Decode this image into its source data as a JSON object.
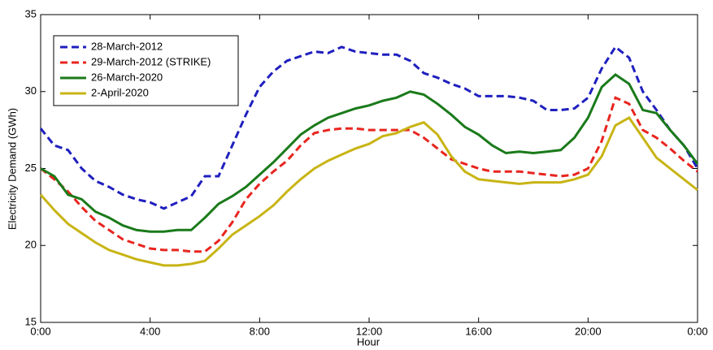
{
  "chart_data": {
    "type": "line",
    "x_label": "Hour",
    "y_label": "Electricity Demand (GWh)",
    "x": [
      0,
      0.5,
      1,
      1.5,
      2,
      2.5,
      3,
      3.5,
      4,
      4.5,
      5,
      5.5,
      6,
      6.5,
      7,
      7.5,
      8,
      8.5,
      9,
      9.5,
      10,
      10.5,
      11,
      11.5,
      12,
      12.5,
      13,
      13.5,
      14,
      14.5,
      15,
      15.5,
      16,
      16.5,
      17,
      17.5,
      18,
      18.5,
      19,
      19.5,
      20,
      20.5,
      21,
      21.5,
      22,
      22.5,
      23,
      23.5,
      24
    ],
    "series": [
      {
        "name": "28-March-2012",
        "color": "#1f1fbf",
        "dashed": true,
        "values": [
          27.6,
          26.5,
          26.2,
          25,
          24.2,
          23.8,
          23.3,
          23,
          22.8,
          22.4,
          22.8,
          23.2,
          24.5,
          24.5,
          26.5,
          28.5,
          30.3,
          31.3,
          32,
          32.3,
          32.6,
          32.5,
          32.9,
          32.6,
          32.5,
          32.4,
          32.4,
          32,
          31.2,
          30.9,
          30.5,
          30.2,
          29.7,
          29.7,
          29.7,
          29.6,
          29.4,
          28.8,
          28.8,
          28.9,
          29.6,
          31.5,
          32.9,
          32.2,
          30,
          28.8,
          27.5,
          26.5,
          25
        ]
      },
      {
        "name": "29-March-2012 (STRIKE)",
        "color": "#e8251f",
        "dashed": true,
        "values": [
          25,
          24.3,
          23.5,
          22.5,
          21.6,
          21,
          20.4,
          20.1,
          19.8,
          19.7,
          19.7,
          19.6,
          19.6,
          20.3,
          21.5,
          23,
          24,
          24.8,
          25.5,
          26.5,
          27.3,
          27.5,
          27.6,
          27.6,
          27.5,
          27.5,
          27.5,
          27.5,
          27,
          26.3,
          25.6,
          25.3,
          25,
          24.8,
          24.8,
          24.8,
          24.7,
          24.6,
          24.5,
          24.6,
          25,
          26.8,
          29.6,
          29.2,
          27.5,
          27,
          26.3,
          25.5,
          24.8
        ]
      },
      {
        "name": "26-March-2020",
        "color": "#1a7a1a",
        "dashed": false,
        "values": [
          25,
          24.5,
          23.3,
          23,
          22.2,
          21.8,
          21.3,
          21,
          20.9,
          20.9,
          21,
          21,
          21.8,
          22.7,
          23.2,
          23.8,
          24.6,
          25.4,
          26.3,
          27.2,
          27.8,
          28.3,
          28.6,
          28.9,
          29.1,
          29.4,
          29.6,
          30,
          29.8,
          29.2,
          28.5,
          27.7,
          27.2,
          26.5,
          26,
          26.1,
          26,
          26.1,
          26.2,
          27,
          28.3,
          30.3,
          31.1,
          30.5,
          28.8,
          28.6,
          27.5,
          26.5,
          25.3
        ]
      },
      {
        "name": "2-April-2020",
        "color": "#c8b414",
        "dashed": false,
        "values": [
          23.3,
          22.3,
          21.4,
          20.8,
          20.2,
          19.7,
          19.4,
          19.1,
          18.9,
          18.7,
          18.7,
          18.8,
          19,
          19.8,
          20.7,
          21.3,
          21.9,
          22.6,
          23.5,
          24.3,
          25,
          25.5,
          25.9,
          26.3,
          26.6,
          27.1,
          27.3,
          27.7,
          28,
          27.2,
          25.8,
          24.8,
          24.3,
          24.2,
          24.1,
          24,
          24.1,
          24.1,
          24.1,
          24.3,
          24.6,
          25.8,
          27.8,
          28.3,
          27,
          25.7,
          25,
          24.3,
          23.6
        ]
      }
    ],
    "xlim": [
      0,
      24
    ],
    "xticks": [
      {
        "value": 0,
        "label": "0:00"
      },
      {
        "value": 4,
        "label": "4:00"
      },
      {
        "value": 8,
        "label": "8:00"
      },
      {
        "value": 12,
        "label": "12:00"
      },
      {
        "value": 16,
        "label": "16:00"
      },
      {
        "value": 20,
        "label": "20:00"
      },
      {
        "value": 24,
        "label": "0:00"
      }
    ],
    "ylim": [
      15,
      35
    ],
    "yticks": [
      15,
      20,
      25,
      30,
      35
    ],
    "grid": false,
    "legend": "upper left"
  }
}
